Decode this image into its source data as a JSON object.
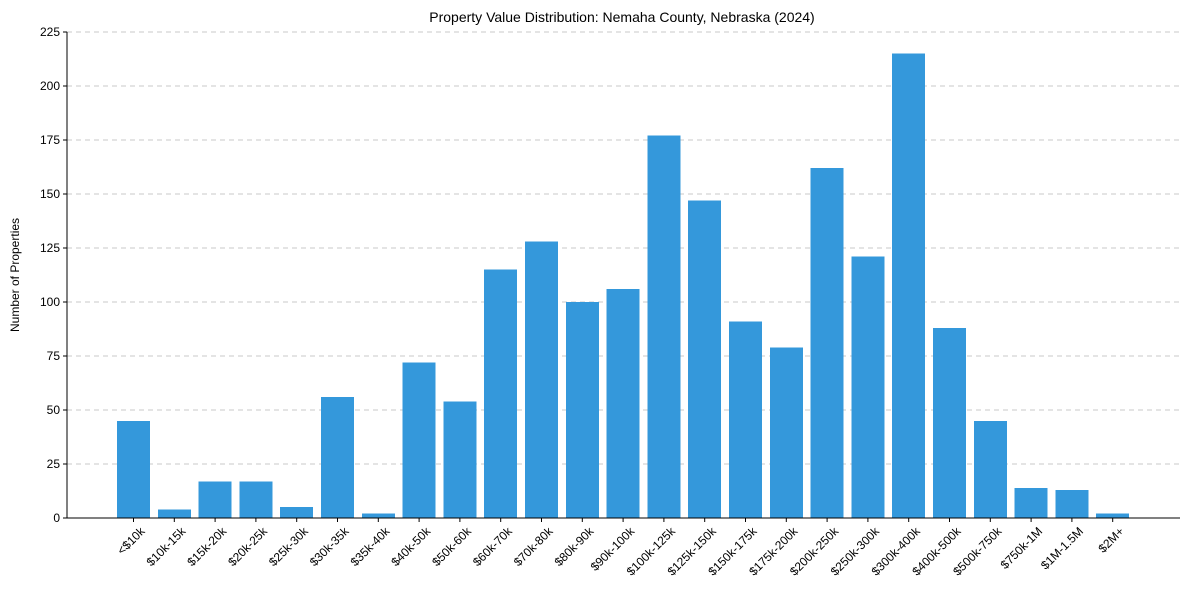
{
  "chart_data": {
    "type": "bar",
    "title": "Property Value Distribution: Nemaha County, Nebraska (2024)",
    "xlabel": "",
    "ylabel": "Number of Properties",
    "categories": [
      "<$10k",
      "$10k-15k",
      "$15k-20k",
      "$20k-25k",
      "$25k-30k",
      "$30k-35k",
      "$35k-40k",
      "$40k-50k",
      "$50k-60k",
      "$60k-70k",
      "$70k-80k",
      "$80k-90k",
      "$90k-100k",
      "$100k-125k",
      "$125k-150k",
      "$150k-175k",
      "$175k-200k",
      "$200k-250k",
      "$250k-300k",
      "$300k-400k",
      "$400k-500k",
      "$500k-750k",
      "$750k-1M",
      "$1M-1.5M",
      "$2M+"
    ],
    "values": [
      45,
      4,
      17,
      17,
      5,
      56,
      2,
      72,
      54,
      115,
      128,
      100,
      106,
      177,
      147,
      91,
      79,
      162,
      121,
      215,
      88,
      45,
      14,
      13,
      2
    ],
    "ylim": [
      0,
      225
    ],
    "yticks": [
      0,
      25,
      50,
      75,
      100,
      125,
      150,
      175,
      200,
      225
    ],
    "grid": "y",
    "bar_color": "#3498db"
  }
}
